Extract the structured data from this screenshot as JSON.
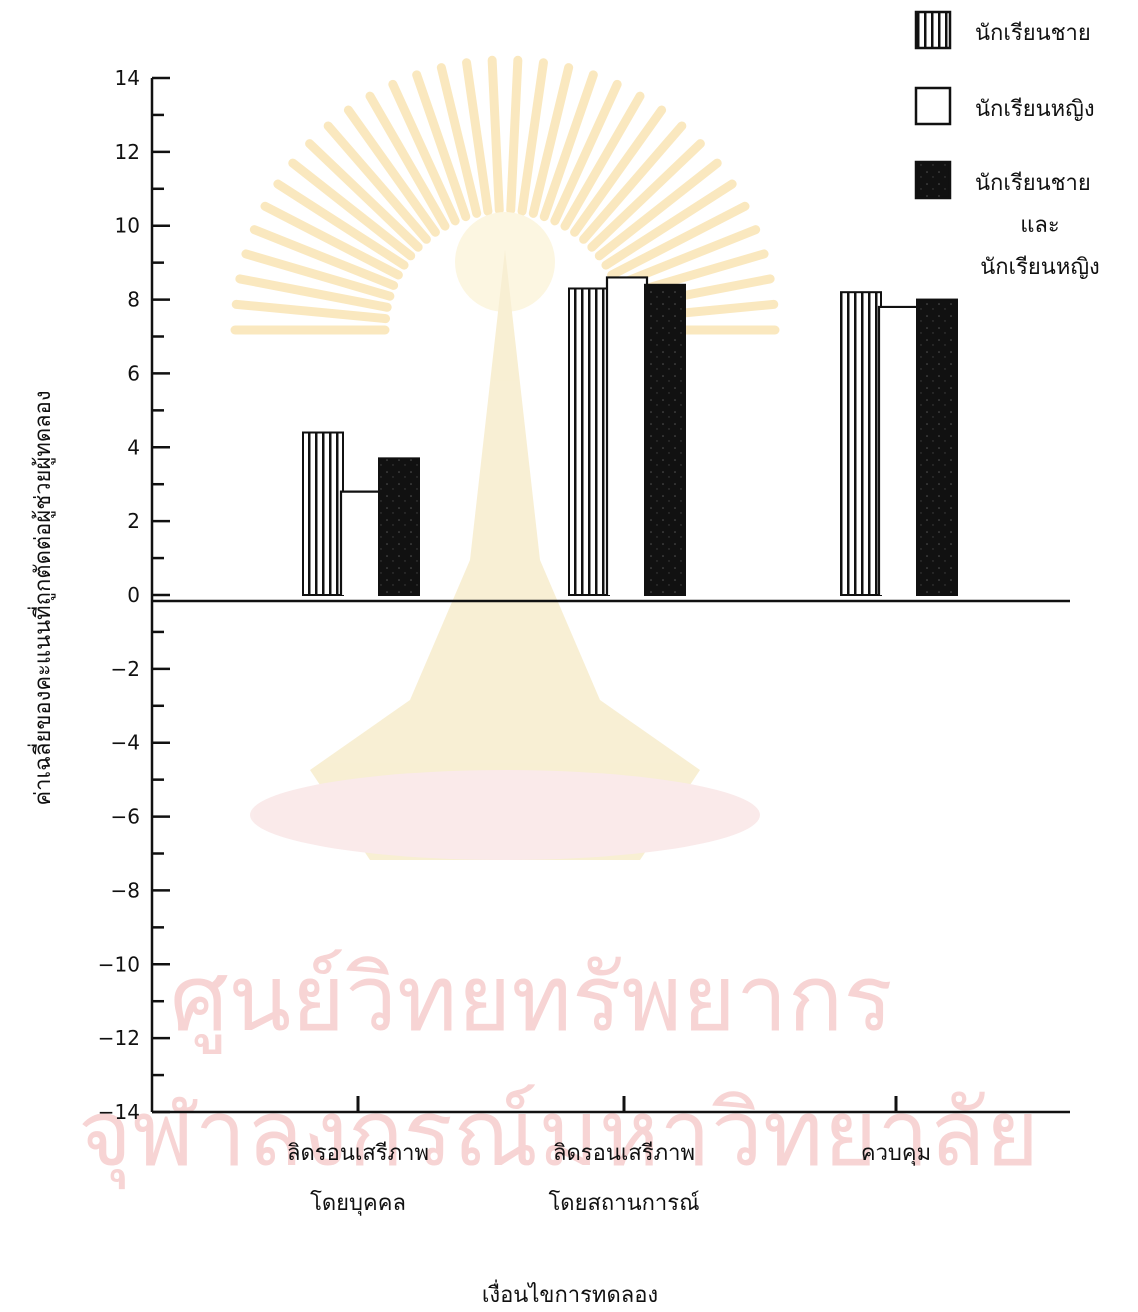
{
  "chart_data": {
    "type": "bar",
    "title": "",
    "xlabel": "เงื่อนไขการทดลอง",
    "ylabel": "ค่าเฉลี่ยของคะแนนที่ถูกตัดต่อผู้ช่วยผู้ทดลอง",
    "ylim": [
      -14,
      14
    ],
    "yticks": [
      14,
      12,
      10,
      8,
      6,
      4,
      2,
      0,
      -2,
      -4,
      -6,
      -8,
      -10,
      -12,
      -14
    ],
    "categories": [
      [
        "ลิดรอนเสรีภาพ",
        "โดยบุคคล"
      ],
      [
        "ลิดรอนเสรีภาพ",
        "โดยสถานการณ์"
      ],
      [
        "ควบคุม"
      ]
    ],
    "series": [
      {
        "name": "นักเรียนชาย",
        "values": [
          4.4,
          8.3,
          8.2
        ],
        "pattern": "vertical-stripes"
      },
      {
        "name": "นักเรียนหญิง",
        "values": [
          2.8,
          8.6,
          7.8
        ],
        "pattern": "white"
      },
      {
        "name": "นักเรียนชาย และ นักเรียนหญิง",
        "values": [
          3.7,
          8.4,
          8.0
        ],
        "pattern": "black"
      }
    ],
    "legend": {
      "position": "top-right",
      "entries": [
        [
          "นักเรียนชาย"
        ],
        [
          "นักเรียนหญิง"
        ],
        [
          "นักเรียนชาย",
          "และ",
          "นักเรียนหญิง"
        ]
      ]
    },
    "grid": false
  },
  "watermark": {
    "line1": "ศูนย์วิทยทรัพยากร",
    "line2": "จุฬาลงกรณ์มหาวิทยาลัย",
    "color": "#f7d4d4",
    "seal_color": "#f6d78c"
  },
  "colors": {
    "ink": "#111111",
    "paper": "#ffffff"
  }
}
